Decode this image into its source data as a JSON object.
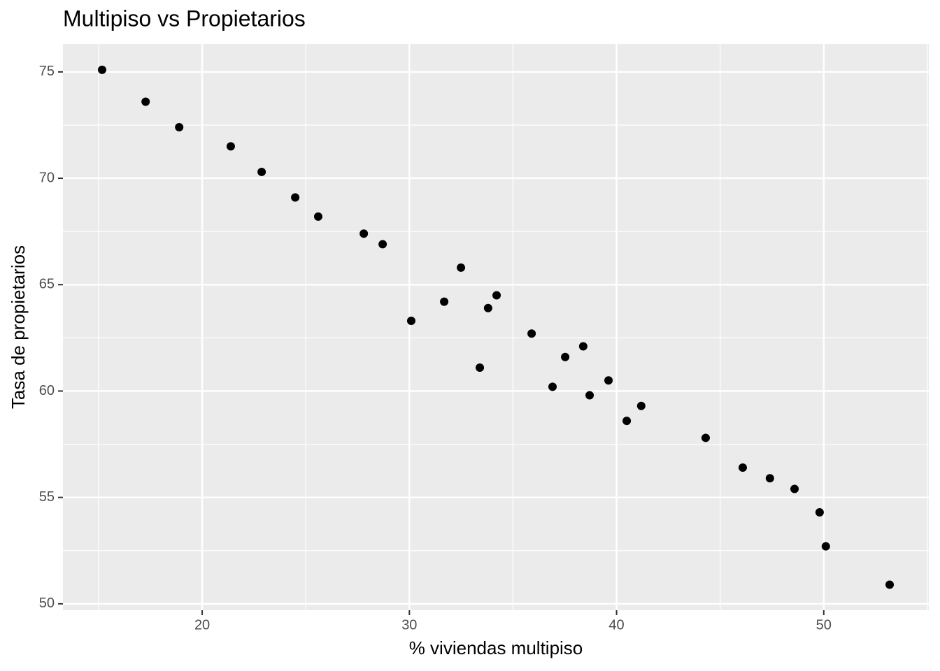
{
  "chart_data": {
    "type": "scatter",
    "title": "Multipiso vs Propietarios",
    "x_label": "% viviendas multipiso",
    "y_label": "Tasa de propietarios",
    "x": [
      15.17,
      17.27,
      18.89,
      21.38,
      22.87,
      24.49,
      25.6,
      27.8,
      28.71,
      30.09,
      31.68,
      32.49,
      33.4,
      33.8,
      34.21,
      35.9,
      36.91,
      37.52,
      38.39,
      38.7,
      39.61,
      40.49,
      41.19,
      44.3,
      46.09,
      47.4,
      48.59,
      49.8,
      50.1,
      53.18
    ],
    "values": [
      75.1,
      73.6,
      72.4,
      71.5,
      70.3,
      69.1,
      68.2,
      67.4,
      66.9,
      63.3,
      64.2,
      65.8,
      61.1,
      63.9,
      64.5,
      62.7,
      60.2,
      61.6,
      62.1,
      59.8,
      60.5,
      58.6,
      59.3,
      57.8,
      56.4,
      55.9,
      55.4,
      54.3,
      52.7,
      50.9
    ],
    "color": "#000000",
    "xlim": [
      13.28,
      55.07
    ],
    "ylim": [
      49.7,
      76.31
    ],
    "xticks": [
      20,
      30,
      40,
      50
    ],
    "yticks": [
      50,
      55,
      60,
      65,
      70,
      75
    ],
    "grid": true
  }
}
